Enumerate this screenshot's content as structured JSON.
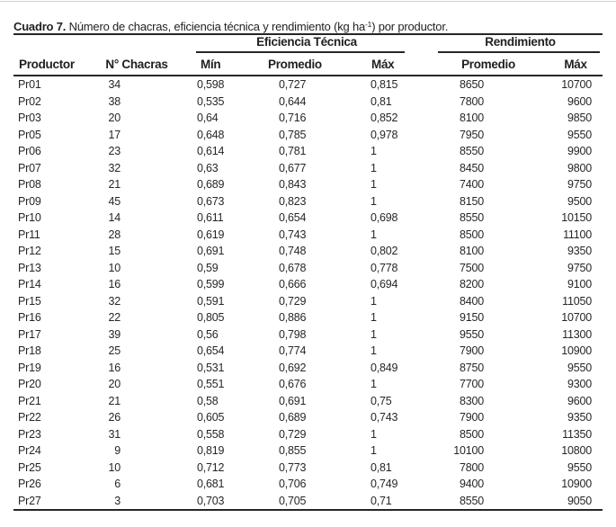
{
  "page": {
    "background": "#ffffff",
    "text_color": "#2b2b2b",
    "rule_color": "#262626"
  },
  "title": {
    "label": "Cuadro 7.",
    "text_before_sup": " Número de chacras, eficiencia técnica y rendimiento (kg ha",
    "sup": "-1",
    "text_after_sup": ") por productor."
  },
  "table": {
    "group_headers": [
      {
        "label": "Eficiencia Técnica"
      },
      {
        "label": "Rendimiento"
      }
    ],
    "columns": [
      "Productor",
      "N° Chacras",
      "Mín",
      "Promedio",
      "Máx",
      "Promedio",
      "Máx"
    ],
    "rows": [
      [
        "Pr01",
        "34",
        "0,598",
        "0,727",
        "0,815",
        "8650",
        "10700"
      ],
      [
        "Pr02",
        "38",
        "0,535",
        "0,644",
        "0,81",
        "7800",
        "9600"
      ],
      [
        "Pr03",
        "20",
        "0,64",
        "0,716",
        "0,852",
        "8100",
        "9850"
      ],
      [
        "Pr05",
        "17",
        "0,648",
        "0,785",
        "0,978",
        "7950",
        "9550"
      ],
      [
        "Pr06",
        "23",
        "0,614",
        "0,781",
        "1",
        "8550",
        "9900"
      ],
      [
        "Pr07",
        "32",
        "0,63",
        "0,677",
        "1",
        "8450",
        "9800"
      ],
      [
        "Pr08",
        "21",
        "0,689",
        "0,843",
        "1",
        "7400",
        "9750"
      ],
      [
        "Pr09",
        "45",
        "0,673",
        "0,823",
        "1",
        "8150",
        "9500"
      ],
      [
        "Pr10",
        "14",
        "0,611",
        "0,654",
        "0,698",
        "8550",
        "10150"
      ],
      [
        "Pr11",
        "28",
        "0,619",
        "0,743",
        "1",
        "8500",
        "11100"
      ],
      [
        "Pr12",
        "15",
        "0,691",
        "0,748",
        "0,802",
        "8100",
        "9350"
      ],
      [
        "Pr13",
        "10",
        "0,59",
        "0,678",
        "0,778",
        "7500",
        "9750"
      ],
      [
        "Pr14",
        "16",
        "0,599",
        "0,666",
        "0,694",
        "8200",
        "9100"
      ],
      [
        "Pr15",
        "32",
        "0,591",
        "0,729",
        "1",
        "8400",
        "11050"
      ],
      [
        "Pr16",
        "22",
        "0,805",
        "0,886",
        "1",
        "9150",
        "10700"
      ],
      [
        "Pr17",
        "39",
        "0,56",
        "0,798",
        "1",
        "9550",
        "11300"
      ],
      [
        "Pr18",
        "25",
        "0,654",
        "0,774",
        "1",
        "7900",
        "10900"
      ],
      [
        "Pr19",
        "16",
        "0,531",
        "0,692",
        "0,849",
        "8750",
        "9550"
      ],
      [
        "Pr20",
        "20",
        "0,551",
        "0,676",
        "1",
        "7700",
        "9300"
      ],
      [
        "Pr21",
        "21",
        "0,58",
        "0,691",
        "0,75",
        "8300",
        "9600"
      ],
      [
        "Pr22",
        "26",
        "0,605",
        "0,689",
        "0,743",
        "7900",
        "9350"
      ],
      [
        "Pr23",
        "31",
        "0,558",
        "0,729",
        "1",
        "8500",
        "11350"
      ],
      [
        "Pr24",
        "9",
        "0,819",
        "0,855",
        "1",
        "10100",
        "10800"
      ],
      [
        "Pr25",
        "10",
        "0,712",
        "0,773",
        "0,81",
        "7800",
        "9550"
      ],
      [
        "Pr26",
        "6",
        "0,681",
        "0,706",
        "0,749",
        "9400",
        "10900"
      ],
      [
        "Pr27",
        "3",
        "0,703",
        "0,705",
        "0,71",
        "8550",
        "9050"
      ]
    ]
  }
}
